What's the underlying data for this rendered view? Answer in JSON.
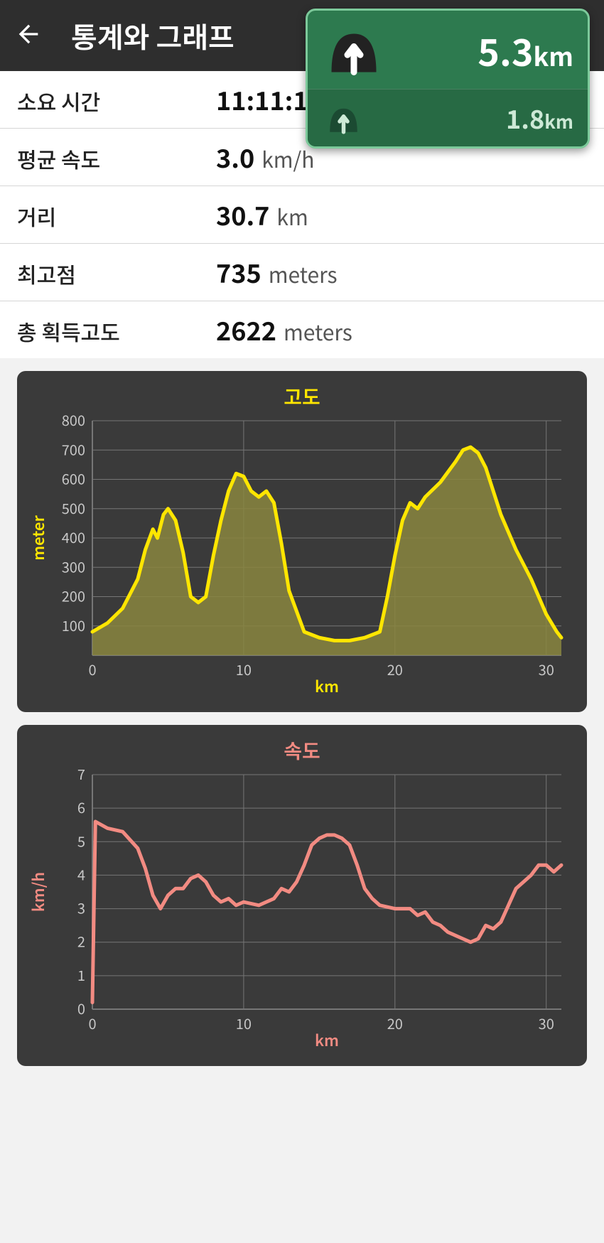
{
  "header": {
    "title": "통계와 그래프"
  },
  "nav": {
    "primary": {
      "value": "5.3",
      "unit": "km"
    },
    "secondary": {
      "value": "1.8",
      "unit": "km"
    },
    "bg_color": "#2d7a4f",
    "border_color": "#7cc99a"
  },
  "stats": [
    {
      "label": "소요 시간",
      "value": "11:11:12",
      "unit": ""
    },
    {
      "label": "평균 속도",
      "value": "3.0",
      "unit": "km/h"
    },
    {
      "label": "거리",
      "value": "30.7",
      "unit": "km"
    },
    {
      "label": "최고점",
      "value": "735",
      "unit": "meters"
    },
    {
      "label": "총 획득고도",
      "value": "2622",
      "unit": "meters"
    }
  ],
  "elevation_chart": {
    "type": "area",
    "title": "고도",
    "xlabel": "km",
    "ylabel": "meter",
    "xlim": [
      0,
      31
    ],
    "ylim": [
      0,
      800
    ],
    "xticks": [
      0,
      10,
      20,
      30
    ],
    "yticks": [
      100,
      200,
      300,
      400,
      500,
      600,
      700,
      800
    ],
    "line_color": "#ffe600",
    "fill_color": "#8a8640",
    "bg_color": "#3a3a3a",
    "grid_color": "#767676",
    "line_width": 5,
    "points": [
      [
        0,
        80
      ],
      [
        1,
        110
      ],
      [
        2,
        160
      ],
      [
        3,
        260
      ],
      [
        3.5,
        360
      ],
      [
        4,
        430
      ],
      [
        4.3,
        400
      ],
      [
        4.7,
        480
      ],
      [
        5,
        500
      ],
      [
        5.5,
        460
      ],
      [
        6,
        350
      ],
      [
        6.5,
        200
      ],
      [
        7,
        180
      ],
      [
        7.5,
        200
      ],
      [
        8,
        340
      ],
      [
        8.5,
        460
      ],
      [
        9,
        560
      ],
      [
        9.5,
        620
      ],
      [
        10,
        610
      ],
      [
        10.5,
        560
      ],
      [
        11,
        540
      ],
      [
        11.5,
        560
      ],
      [
        12,
        520
      ],
      [
        12.5,
        380
      ],
      [
        13,
        220
      ],
      [
        14,
        80
      ],
      [
        15,
        60
      ],
      [
        16,
        50
      ],
      [
        17,
        50
      ],
      [
        18,
        60
      ],
      [
        19,
        80
      ],
      [
        19.5,
        200
      ],
      [
        20,
        340
      ],
      [
        20.5,
        460
      ],
      [
        21,
        520
      ],
      [
        21.5,
        500
      ],
      [
        22,
        540
      ],
      [
        23,
        590
      ],
      [
        24,
        660
      ],
      [
        24.5,
        700
      ],
      [
        25,
        710
      ],
      [
        25.5,
        690
      ],
      [
        26,
        640
      ],
      [
        26.5,
        560
      ],
      [
        27,
        480
      ],
      [
        28,
        360
      ],
      [
        29,
        260
      ],
      [
        30,
        140
      ],
      [
        30.7,
        80
      ],
      [
        31,
        60
      ]
    ]
  },
  "speed_chart": {
    "type": "line",
    "title": "속도",
    "xlabel": "km",
    "ylabel": "km/h",
    "xlim": [
      0,
      31
    ],
    "ylim": [
      0,
      7
    ],
    "xticks": [
      0,
      10,
      20,
      30
    ],
    "yticks": [
      0,
      1,
      2,
      3,
      4,
      5,
      6,
      7
    ],
    "line_color": "#f28b82",
    "bg_color": "#3a3a3a",
    "grid_color": "#767676",
    "line_width": 5,
    "points": [
      [
        0,
        0.2
      ],
      [
        0.2,
        5.6
      ],
      [
        1,
        5.4
      ],
      [
        2,
        5.3
      ],
      [
        3,
        4.8
      ],
      [
        3.5,
        4.2
      ],
      [
        4,
        3.4
      ],
      [
        4.5,
        3.0
      ],
      [
        5,
        3.4
      ],
      [
        5.5,
        3.6
      ],
      [
        6,
        3.6
      ],
      [
        6.5,
        3.9
      ],
      [
        7,
        4.0
      ],
      [
        7.5,
        3.8
      ],
      [
        8,
        3.4
      ],
      [
        8.5,
        3.2
      ],
      [
        9,
        3.3
      ],
      [
        9.5,
        3.1
      ],
      [
        10,
        3.2
      ],
      [
        11,
        3.1
      ],
      [
        12,
        3.3
      ],
      [
        12.5,
        3.6
      ],
      [
        13,
        3.5
      ],
      [
        13.5,
        3.8
      ],
      [
        14,
        4.3
      ],
      [
        14.5,
        4.9
      ],
      [
        15,
        5.1
      ],
      [
        15.5,
        5.2
      ],
      [
        16,
        5.2
      ],
      [
        16.5,
        5.1
      ],
      [
        17,
        4.9
      ],
      [
        17.5,
        4.3
      ],
      [
        18,
        3.6
      ],
      [
        18.5,
        3.3
      ],
      [
        19,
        3.1
      ],
      [
        20,
        3.0
      ],
      [
        21,
        3.0
      ],
      [
        21.5,
        2.8
      ],
      [
        22,
        2.9
      ],
      [
        22.5,
        2.6
      ],
      [
        23,
        2.5
      ],
      [
        23.5,
        2.3
      ],
      [
        24,
        2.2
      ],
      [
        24.5,
        2.1
      ],
      [
        25,
        2.0
      ],
      [
        25.5,
        2.1
      ],
      [
        26,
        2.5
      ],
      [
        26.5,
        2.4
      ],
      [
        27,
        2.6
      ],
      [
        27.5,
        3.1
      ],
      [
        28,
        3.6
      ],
      [
        28.5,
        3.8
      ],
      [
        29,
        4.0
      ],
      [
        29.5,
        4.3
      ],
      [
        30,
        4.3
      ],
      [
        30.5,
        4.1
      ],
      [
        31,
        4.3
      ]
    ]
  }
}
